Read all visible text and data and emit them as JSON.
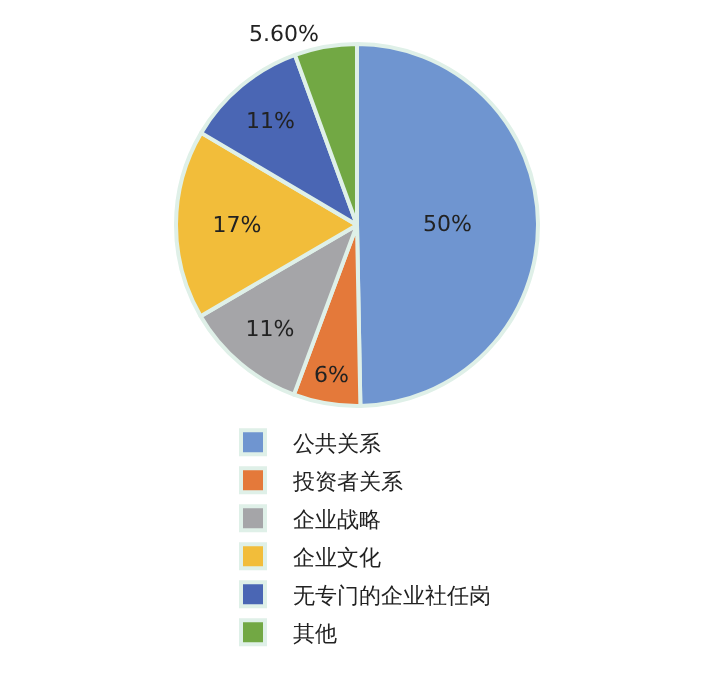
{
  "chart_data": {
    "type": "pie",
    "categories": [
      "公共关系",
      "投资者关系",
      "企业战略",
      "企业文化",
      "无专门的企业社任岗",
      "其他"
    ],
    "values": [
      50,
      6,
      11,
      17,
      11,
      5.6
    ],
    "colors": [
      "#6f95d0",
      "#e4793a",
      "#a5a5a8",
      "#f2bd3a",
      "#4a66b4",
      "#72a844"
    ],
    "value_labels": [
      "50%",
      "6%",
      "11%",
      "17%",
      "11%",
      "5.60%"
    ],
    "legend": "bottom"
  }
}
